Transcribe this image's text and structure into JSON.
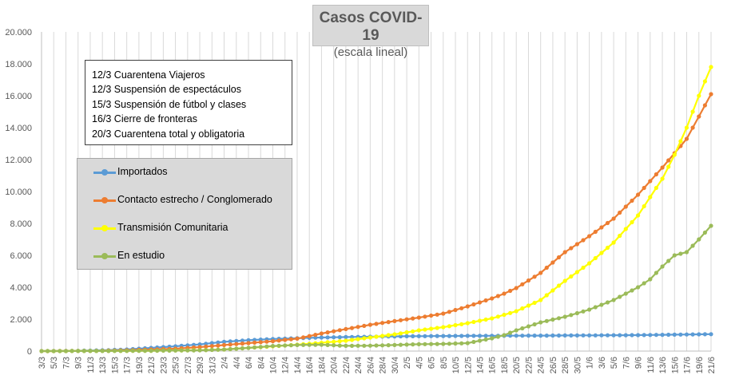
{
  "title": {
    "main": "Casos  COVID-19",
    "sub": "(escala lineal)"
  },
  "notes": [
    "12/3 Cuarentena Viajeros",
    "12/3 Suspensión de espectáculos",
    "15/3 Suspensión de fútbol y clases",
    "16/3 Cierre de fronteras",
    "20/3 Cuarentena total y obligatoria"
  ],
  "legend_placement": "left-center",
  "chart_data": {
    "type": "line",
    "title": "Casos  COVID-19",
    "subtitle": "(escala lineal)",
    "xlabel": "",
    "ylabel": "",
    "ylim": [
      0,
      20000
    ],
    "y_ticks": [
      0,
      2000,
      4000,
      6000,
      8000,
      10000,
      12000,
      14000,
      16000,
      18000,
      20000
    ],
    "y_tick_labels": [
      "0",
      "2.000",
      "4.000",
      "6.000",
      "8.000",
      "10.000",
      "12.000",
      "14.000",
      "16.000",
      "18.000",
      "20.000"
    ],
    "grid": "vertical",
    "x_start": "3/3",
    "x_end": "21/6",
    "x_tick_labels": [
      "3/3",
      "5/3",
      "7/3",
      "9/3",
      "11/3",
      "13/3",
      "15/3",
      "17/3",
      "19/3",
      "21/3",
      "23/3",
      "25/3",
      "27/3",
      "29/3",
      "31/3",
      "2/4",
      "4/4",
      "6/4",
      "8/4",
      "10/4",
      "12/4",
      "14/4",
      "16/4",
      "18/4",
      "20/4",
      "22/4",
      "24/4",
      "26/4",
      "28/4",
      "30/4",
      "2/5",
      "4/5",
      "6/5",
      "8/5",
      "10/5",
      "12/5",
      "14/5",
      "16/5",
      "18/5",
      "20/5",
      "22/5",
      "24/5",
      "26/5",
      "28/5",
      "30/5",
      "1/6",
      "3/6",
      "5/6",
      "7/6",
      "9/6",
      "11/6",
      "13/6",
      "15/6",
      "17/6",
      "19/6",
      "21/6"
    ],
    "series": [
      {
        "name": "Importados",
        "color": "#5b9bd5",
        "keypoints": [
          [
            "3/3",
            1
          ],
          [
            "9/3",
            20
          ],
          [
            "13/3",
            50
          ],
          [
            "17/3",
            100
          ],
          [
            "21/3",
            200
          ],
          [
            "25/3",
            300
          ],
          [
            "29/3",
            420
          ],
          [
            "2/4",
            580
          ],
          [
            "6/4",
            680
          ],
          [
            "10/4",
            760
          ],
          [
            "14/4",
            810
          ],
          [
            "18/4",
            850
          ],
          [
            "22/4",
            880
          ],
          [
            "26/4",
            900
          ],
          [
            "30/4",
            920
          ],
          [
            "4/5",
            935
          ],
          [
            "10/5",
            950
          ],
          [
            "16/5",
            960
          ],
          [
            "24/5",
            970
          ],
          [
            "1/6",
            985
          ],
          [
            "9/6",
            1000
          ],
          [
            "15/6",
            1030
          ],
          [
            "21/6",
            1060
          ]
        ]
      },
      {
        "name": "Contacto estrecho / Conglomerado",
        "color": "#ed7d31",
        "keypoints": [
          [
            "3/3",
            0
          ],
          [
            "9/3",
            5
          ],
          [
            "13/3",
            20
          ],
          [
            "17/3",
            50
          ],
          [
            "21/3",
            100
          ],
          [
            "25/3",
            150
          ],
          [
            "29/3",
            250
          ],
          [
            "2/4",
            380
          ],
          [
            "6/4",
            500
          ],
          [
            "10/4",
            620
          ],
          [
            "14/4",
            780
          ],
          [
            "18/4",
            1100
          ],
          [
            "22/4",
            1380
          ],
          [
            "26/4",
            1650
          ],
          [
            "30/4",
            1880
          ],
          [
            "4/5",
            2100
          ],
          [
            "8/5",
            2350
          ],
          [
            "12/5",
            2800
          ],
          [
            "16/5",
            3300
          ],
          [
            "18/5",
            3600
          ],
          [
            "20/5",
            3950
          ],
          [
            "24/5",
            4900
          ],
          [
            "28/5",
            6200
          ],
          [
            "1/6",
            7200
          ],
          [
            "5/6",
            8300
          ],
          [
            "9/6",
            9800
          ],
          [
            "13/6",
            11500
          ],
          [
            "15/6",
            12400
          ],
          [
            "17/6",
            13300
          ],
          [
            "19/6",
            14700
          ],
          [
            "21/6",
            16100
          ]
        ]
      },
      {
        "name": "Transmisión Comunitaria",
        "color": "#ffff00",
        "keypoints": [
          [
            "3/3",
            0
          ],
          [
            "13/3",
            5
          ],
          [
            "21/3",
            20
          ],
          [
            "29/3",
            60
          ],
          [
            "2/4",
            100
          ],
          [
            "6/4",
            200
          ],
          [
            "10/4",
            300
          ],
          [
            "14/4",
            400
          ],
          [
            "18/4",
            520
          ],
          [
            "22/4",
            650
          ],
          [
            "26/4",
            850
          ],
          [
            "30/4",
            1050
          ],
          [
            "4/5",
            1300
          ],
          [
            "8/5",
            1500
          ],
          [
            "12/5",
            1750
          ],
          [
            "16/5",
            2050
          ],
          [
            "20/5",
            2500
          ],
          [
            "24/5",
            3200
          ],
          [
            "28/5",
            4400
          ],
          [
            "1/6",
            5500
          ],
          [
            "5/6",
            6800
          ],
          [
            "9/6",
            8500
          ],
          [
            "13/6",
            10800
          ],
          [
            "15/6",
            12300
          ],
          [
            "17/6",
            14000
          ],
          [
            "19/6",
            16000
          ],
          [
            "21/6",
            17800
          ]
        ]
      },
      {
        "name": "En estudio",
        "color": "#9bbb59",
        "keypoints": [
          [
            "3/3",
            0
          ],
          [
            "13/3",
            5
          ],
          [
            "21/3",
            20
          ],
          [
            "29/3",
            50
          ],
          [
            "2/4",
            100
          ],
          [
            "6/4",
            200
          ],
          [
            "10/4",
            320
          ],
          [
            "14/4",
            380
          ],
          [
            "18/4",
            400
          ],
          [
            "22/4",
            330
          ],
          [
            "26/4",
            340
          ],
          [
            "30/4",
            380
          ],
          [
            "4/5",
            430
          ],
          [
            "8/5",
            450
          ],
          [
            "12/5",
            500
          ],
          [
            "16/5",
            800
          ],
          [
            "18/5",
            1000
          ],
          [
            "20/5",
            1300
          ],
          [
            "24/5",
            1800
          ],
          [
            "28/5",
            2150
          ],
          [
            "1/6",
            2600
          ],
          [
            "5/6",
            3200
          ],
          [
            "9/6",
            4000
          ],
          [
            "11/6",
            4500
          ],
          [
            "13/6",
            5300
          ],
          [
            "15/6",
            6000
          ],
          [
            "17/6",
            6200
          ],
          [
            "19/6",
            7000
          ],
          [
            "21/6",
            7850
          ]
        ]
      }
    ]
  }
}
